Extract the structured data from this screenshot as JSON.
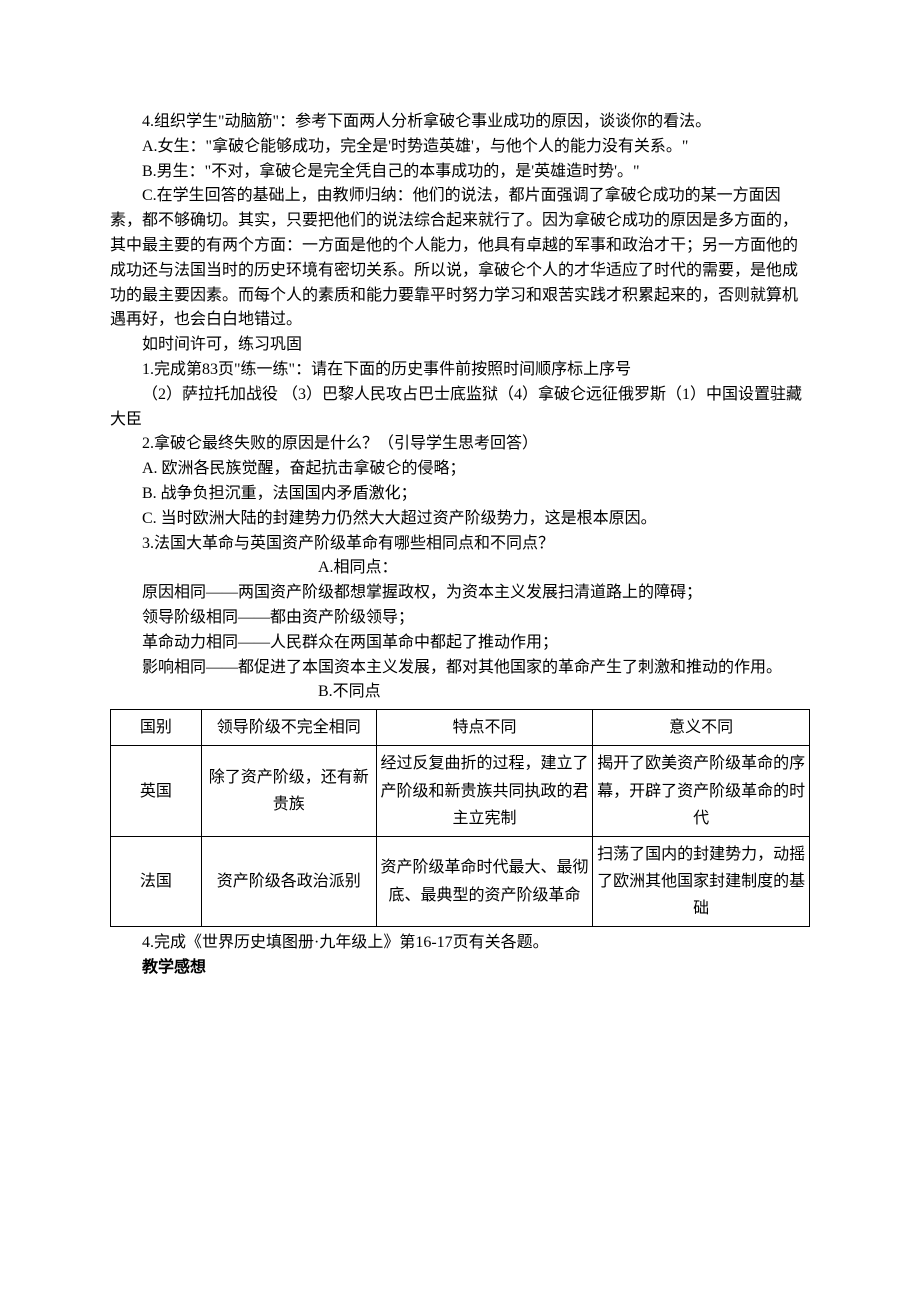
{
  "p1": "4.组织学生\"动脑筋\"：参考下面两人分析拿破仑事业成功的原因，谈谈你的看法。",
  "p2": "A.女生：\"拿破仑能够成功，完全是'时势造英雄'，与他个人的能力没有关系。\"",
  "p3": "B.男生：\"不对，拿破仑是完全凭自己的本事成功的，是'英雄造时势'。\"",
  "p4": "C.在学生回答的基础上，由教师归纳：他们的说法，都片面强调了拿破仑成功的某一方面因素，都不够确切。其实，只要把他们的说法综合起来就行了。因为拿破仑成功的原因是多方面的，其中最主要的有两个方面：一方面是他的个人能力，他具有卓越的军事和政治才干；另一方面他的成功还与法国当时的历史环境有密切关系。所以说，拿破仑个人的才华适应了时代的需要，是他成功的最主要因素。而每个人的素质和能力要靠平时努力学习和艰苦实践才积累起来的，否则就算机遇再好，也会白白地错过。",
  "p5": "如时间许可，练习巩固",
  "p6": "1.完成第83页\"练一练\"：请在下面的历史事件前按照时间顺序标上序号",
  "p7": "（2）萨拉托加战役 （3）巴黎人民攻占巴士底监狱（4）拿破仑远征俄罗斯（1）中国设置驻藏大臣",
  "p8": "2.拿破仑最终失败的原因是什么？（引导学生思考回答）",
  "p9": "A. 欧洲各民族觉醒，奋起抗击拿破仑的侵略；",
  "p10": "B. 战争负担沉重，法国国内矛盾激化；",
  "p11": "C. 当时欧洲大陆的封建势力仍然大大超过资产阶级势力，这是根本原因。",
  "p12": "3.法国大革命与英国资产阶级革命有哪些相同点和不同点？",
  "p13": "A.相同点：",
  "p14": "原因相同——两国资产阶级都想掌握政权，为资本主义发展扫清道路上的障碍；",
  "p15": "领导阶级相同——都由资产阶级领导；",
  "p16": "革命动力相同——人民群众在两国革命中都起了推动作用；",
  "p17": "影响相同——都促进了本国资本主义发展，都对其他国家的革命产生了刺激和推动的作用。",
  "p18": "B.不同点",
  "table": {
    "headers": [
      "国别",
      "领导阶级不完全相同",
      "特点不同",
      "意义不同"
    ],
    "rows": [
      [
        "英国",
        "除了资产阶级，还有新贵族",
        "经过反复曲折的过程，建立了产阶级和新贵族共同执政的君主立宪制",
        "揭开了欧美资产阶级革命的序幕，开辟了资产阶级革命的时代"
      ],
      [
        "法国",
        "资产阶级各政治派别",
        "资产阶级革命时代最大、最彻底、最典型的资产阶级革命",
        "扫荡了国内的封建势力，动摇了欧洲其他国家封建制度的基础"
      ]
    ]
  },
  "p19": "4.完成《世界历史填图册·九年级上》第16-17页有关各题。",
  "p20": "教学感想"
}
